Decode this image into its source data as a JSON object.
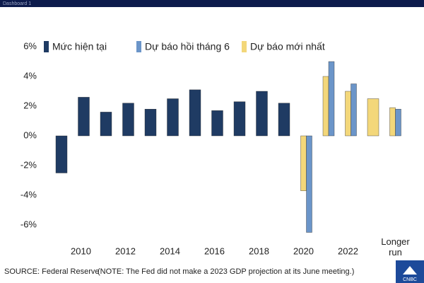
{
  "header": {
    "title": "Dashboard 1"
  },
  "chart_data": {
    "type": "bar",
    "categories": [
      null,
      "2010",
      null,
      "2012",
      null,
      "2014",
      null,
      "2016",
      null,
      "2018",
      null,
      "2020",
      null,
      "2022",
      null,
      "Longer run"
    ],
    "series": [
      {
        "name": "Mức hiện tại",
        "color": "#1f3b63",
        "values": [
          -2.5,
          2.6,
          1.6,
          2.2,
          1.8,
          2.5,
          3.1,
          1.7,
          2.3,
          3.0,
          2.2,
          null,
          null,
          null,
          null,
          null
        ]
      },
      {
        "name": "Dự báo hồi tháng 6",
        "color": "#6b95c9",
        "values": [
          null,
          null,
          null,
          null,
          null,
          null,
          null,
          null,
          null,
          null,
          null,
          -6.5,
          5.0,
          3.5,
          null,
          1.8
        ]
      },
      {
        "name": "Dự báo mới nhất",
        "color": "#f3d77a",
        "values": [
          null,
          null,
          null,
          null,
          null,
          null,
          null,
          null,
          null,
          null,
          null,
          -3.7,
          4.0,
          3.0,
          2.5,
          1.9
        ]
      }
    ],
    "ylim": [
      -7,
      7
    ],
    "yticks": [
      {
        "value": -6,
        "label": "-6%"
      },
      {
        "value": -4,
        "label": "-4%"
      },
      {
        "value": -2,
        "label": "-2%"
      },
      {
        "value": 0,
        "label": "0%"
      },
      {
        "value": 2,
        "label": "2%"
      },
      {
        "value": 4,
        "label": "4%"
      },
      {
        "value": 6,
        "label": "6%"
      }
    ],
    "source": "SOURCE: Federal Reserve",
    "note": "(NOTE: The Fed did not make a 2023 GDP projection at its June meeting.)",
    "logo": "CNBC"
  }
}
